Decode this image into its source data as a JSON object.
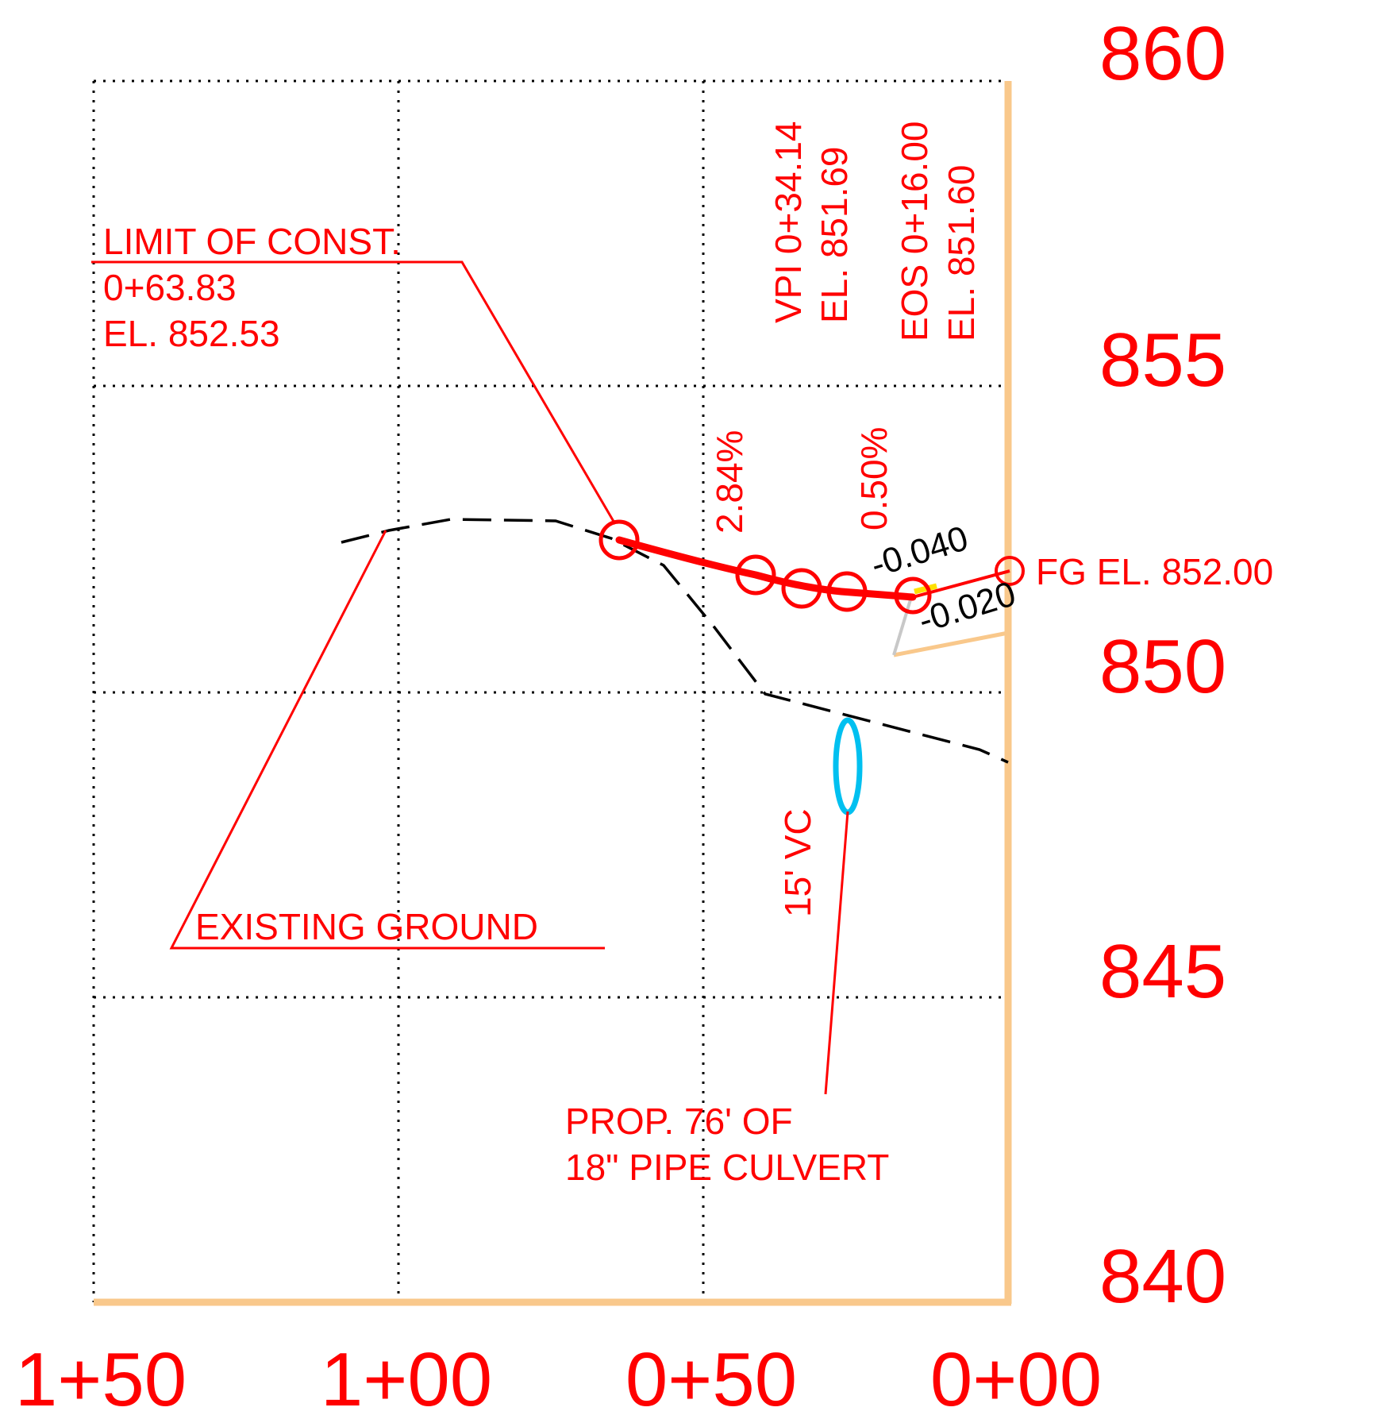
{
  "colors": {
    "annotation": "#ff0000",
    "existing_ground": "#000000",
    "frame": "#f9c88b",
    "grid": "#000000",
    "culvert": "#00c0f0",
    "yellow_mark": "#ffe000",
    "gray_line": "#c8c8c8"
  },
  "axes": {
    "elevation_labels": [
      "860",
      "855",
      "850",
      "845",
      "840"
    ],
    "station_labels": [
      "1+50",
      "1+00",
      "0+50",
      "0+00"
    ]
  },
  "annotations": {
    "limit_of_const": {
      "line1": "LIMIT OF CONST.",
      "line2": "0+63.83",
      "line3": "EL. 852.53"
    },
    "vpi": {
      "line1": "VPI 0+34.14",
      "line2": "EL. 851.69"
    },
    "eos": {
      "line1": "EOS 0+16.00",
      "line2": "EL. 851.60"
    },
    "grade_1": "2.84%",
    "grade_2": "0.50%",
    "slope_1": "-0.040",
    "slope_2": "-0.020",
    "fg_elevation": "FG EL. 852.00",
    "existing_ground": "EXISTING GROUND",
    "vertical_curve": "15' VC",
    "culvert": {
      "line1": "PROP. 76' OF",
      "line2": "18\" PIPE CULVERT"
    }
  },
  "icons": {
    "pvi_marker": "circle-marker-icon",
    "culvert_section": "ellipse-culvert-icon"
  }
}
